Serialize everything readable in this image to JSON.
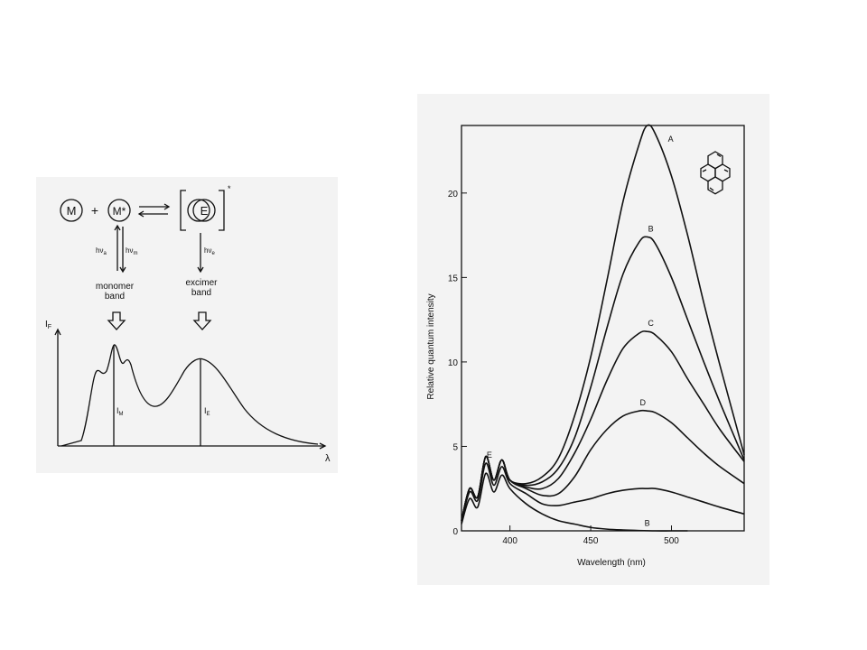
{
  "scheme": {
    "m": "M",
    "plus": "+",
    "mstar": "M*",
    "e": "E",
    "star": "*",
    "hv_a": "hν",
    "hv_a_sub": "a",
    "hv_m": "hν",
    "hv_m_sub": "m",
    "hv_e": "hν",
    "hv_e_sub": "e",
    "monomer_band_1": "monomer",
    "monomer_band_2": "band",
    "excimer_band_1": "excimer",
    "excimer_band_2": "band",
    "y_label": "I",
    "y_label_sub": "F",
    "x_label": "λ",
    "im_label": "I",
    "im_label_sub": "M",
    "ie_label": "I",
    "ie_label_sub": "E"
  },
  "chart_data": [
    {
      "type": "line",
      "title": "",
      "xlabel": "λ",
      "ylabel": "IF",
      "note": "schematic spectrum with monomer and excimer bands; peak markers IM and IE",
      "series": [
        {
          "values": "schematic (no scale)"
        }
      ]
    },
    {
      "type": "line",
      "title": "",
      "xlabel": "Wavelength (nm)",
      "ylabel": "Relative quantum intensity",
      "xlim": [
        370,
        545
      ],
      "ylim": [
        0,
        24
      ],
      "xticks": [
        400,
        450,
        500
      ],
      "yticks": [
        0,
        5,
        10,
        15,
        20
      ],
      "legend": "curve labels at right",
      "series": [
        {
          "name": "A",
          "x": [
            370,
            375,
            380,
            385,
            390,
            395,
            400,
            410,
            420,
            430,
            440,
            450,
            460,
            470,
            480,
            485,
            490,
            500,
            510,
            520,
            530,
            545
          ],
          "y": [
            0.6,
            2.5,
            2.0,
            4.4,
            3.0,
            4.2,
            3.0,
            2.8,
            3.2,
            4.3,
            6.8,
            10.3,
            14.8,
            19.5,
            22.9,
            24.0,
            23.5,
            21.0,
            17.5,
            13.5,
            9.8,
            4.5
          ]
        },
        {
          "name": "B",
          "x": [
            370,
            375,
            380,
            385,
            390,
            395,
            400,
            410,
            420,
            430,
            440,
            450,
            460,
            470,
            480,
            485,
            490,
            500,
            510,
            520,
            530,
            545
          ],
          "y": [
            0.6,
            2.5,
            2.0,
            4.4,
            3.0,
            4.2,
            3.0,
            2.7,
            2.9,
            3.7,
            5.5,
            8.5,
            12.0,
            15.2,
            17.1,
            17.4,
            17.0,
            15.0,
            12.5,
            10.0,
            7.6,
            4.2
          ]
        },
        {
          "name": "C",
          "x": [
            370,
            375,
            380,
            385,
            390,
            395,
            400,
            410,
            420,
            430,
            440,
            450,
            460,
            470,
            480,
            485,
            490,
            500,
            510,
            520,
            530,
            545
          ],
          "y": [
            0.6,
            2.5,
            2.0,
            4.4,
            3.0,
            4.2,
            3.0,
            2.6,
            2.5,
            3.1,
            4.6,
            6.6,
            8.9,
            10.8,
            11.7,
            11.8,
            11.6,
            10.6,
            9.0,
            7.5,
            6.0,
            4.1
          ]
        },
        {
          "name": "D",
          "x": [
            370,
            375,
            380,
            385,
            390,
            395,
            400,
            410,
            420,
            430,
            440,
            450,
            460,
            470,
            480,
            485,
            490,
            500,
            510,
            520,
            530,
            545
          ],
          "y": [
            0.6,
            2.5,
            2.0,
            4.4,
            3.0,
            4.2,
            3.0,
            2.5,
            2.1,
            2.2,
            3.2,
            4.8,
            6.0,
            6.8,
            7.1,
            7.1,
            7.0,
            6.4,
            5.5,
            4.6,
            3.8,
            2.8
          ]
        },
        {
          "name": "E",
          "x": [
            370,
            375,
            380,
            385,
            390,
            395,
            400,
            410,
            420,
            430,
            440,
            450,
            460,
            470,
            480,
            485,
            490,
            500,
            510,
            520,
            530,
            545
          ],
          "y": [
            0.5,
            2.3,
            1.8,
            4.0,
            2.7,
            3.8,
            2.8,
            2.2,
            1.6,
            1.5,
            1.7,
            1.9,
            2.2,
            2.4,
            2.5,
            2.5,
            2.5,
            2.3,
            2.0,
            1.7,
            1.4,
            1.0
          ]
        },
        {
          "name": "B",
          "x": [
            370,
            375,
            380,
            385,
            390,
            395,
            400,
            410,
            420,
            430,
            440,
            450,
            460,
            470,
            480,
            490,
            500,
            510
          ],
          "y": [
            0.4,
            1.9,
            1.4,
            3.4,
            2.3,
            3.3,
            2.5,
            1.6,
            1.0,
            0.6,
            0.4,
            0.2,
            0.1,
            0.05,
            0.02,
            0.0,
            0.0,
            0.0
          ]
        }
      ]
    }
  ]
}
